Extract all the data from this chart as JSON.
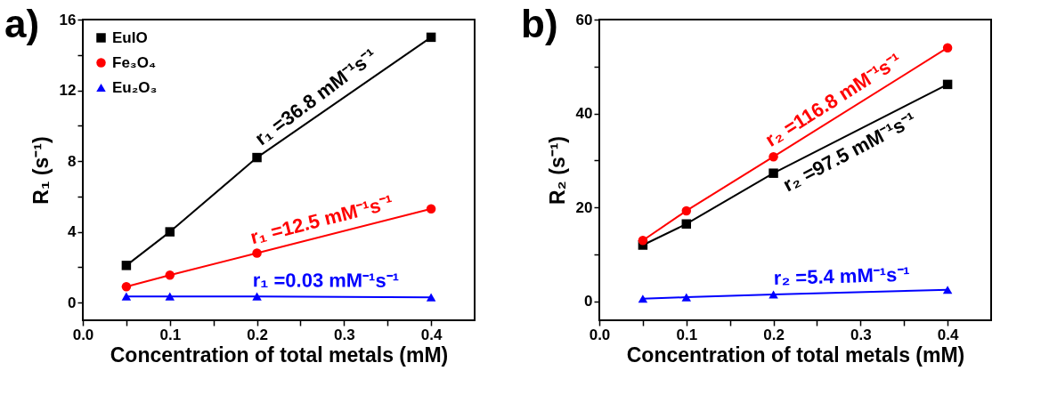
{
  "chart_data": [
    {
      "type": "line",
      "title": "a)",
      "xlabel": "Concentration of total metals (mM)",
      "ylabel": "R₁ (s⁻¹)",
      "x": [
        0.05,
        0.1,
        0.2,
        0.4
      ],
      "series": [
        {
          "name": "EuIO",
          "color": "#000000",
          "marker": "square",
          "values": [
            2.1,
            4.0,
            8.2,
            15.0
          ]
        },
        {
          "name": "Fe₃O₄",
          "color": "#ff0000",
          "marker": "circle",
          "values": [
            0.9,
            1.55,
            2.8,
            5.3
          ]
        },
        {
          "name": "Eu₂O₃",
          "color": "#0000ff",
          "marker": "triangle",
          "values": [
            0.35,
            0.35,
            0.35,
            0.3
          ]
        }
      ],
      "annotations": [
        "r₁ =36.8 mM⁻¹s⁻¹",
        "r₁ =12.5 mM⁻¹s⁻¹",
        "r₁ =0.03 mM⁻¹s⁻¹"
      ],
      "xlim": [
        0,
        0.45
      ],
      "xticks": [
        {
          "value": 0,
          "label": "0.0"
        },
        {
          "value": 0.05,
          "label": null
        },
        0.1,
        {
          "value": 0.15,
          "label": null
        },
        0.2,
        {
          "value": 0.25,
          "label": null
        },
        0.3,
        {
          "value": 0.35,
          "label": null
        },
        0.4
      ],
      "ylim": [
        -1,
        16
      ],
      "yticks": [
        0,
        {
          "value": 2,
          "label": null
        },
        4,
        {
          "value": 6,
          "label": null
        },
        8,
        {
          "value": 10,
          "label": null
        },
        12,
        {
          "value": 14,
          "label": null
        },
        16
      ],
      "legend": "top left",
      "grid": false
    },
    {
      "type": "line",
      "title": "b)",
      "xlabel": "Concentration of total metals (mM)",
      "ylabel": "R₂ (s⁻¹)",
      "x": [
        0.05,
        0.1,
        0.2,
        0.4
      ],
      "series": [
        {
          "name": "EuIO",
          "color": "#000000",
          "marker": "square",
          "values": [
            12,
            16.5,
            27.3,
            46.2
          ]
        },
        {
          "name": "Fe₃O₄",
          "color": "#ff0000",
          "marker": "circle",
          "values": [
            13,
            19.3,
            30.8,
            54
          ]
        },
        {
          "name": "Eu₂O₃",
          "color": "#0000ff",
          "marker": "triangle",
          "values": [
            0.6,
            0.9,
            1.5,
            2.5
          ]
        }
      ],
      "annotations": [
        "r₂ =97.5 mM⁻¹s⁻¹",
        "r₂ =116.8 mM⁻¹s⁻¹",
        "r₂ =5.4 mM⁻¹s⁻¹"
      ],
      "xlim": [
        0,
        0.45
      ],
      "xticks": [
        {
          "value": 0,
          "label": "0.0"
        },
        {
          "value": 0.05,
          "label": null
        },
        0.1,
        {
          "value": 0.15,
          "label": null
        },
        0.2,
        {
          "value": 0.25,
          "label": null
        },
        0.3,
        {
          "value": 0.35,
          "label": null
        },
        0.4
      ],
      "ylim": [
        -4,
        60
      ],
      "yticks": [
        0,
        {
          "value": 10,
          "label": null
        },
        20,
        {
          "value": 30,
          "label": null
        },
        40,
        {
          "value": 50,
          "label": null
        },
        60
      ],
      "legend": "top left",
      "grid": false
    }
  ]
}
